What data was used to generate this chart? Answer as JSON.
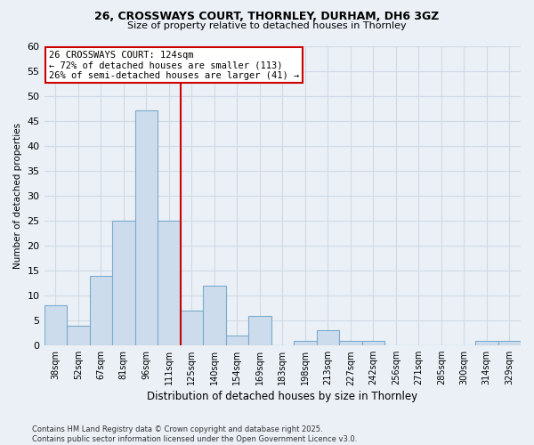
{
  "title_line1": "26, CROSSWAYS COURT, THORNLEY, DURHAM, DH6 3GZ",
  "title_line2": "Size of property relative to detached houses in Thornley",
  "xlabel": "Distribution of detached houses by size in Thornley",
  "ylabel": "Number of detached properties",
  "bar_labels": [
    "38sqm",
    "52sqm",
    "67sqm",
    "81sqm",
    "96sqm",
    "111sqm",
    "125sqm",
    "140sqm",
    "154sqm",
    "169sqm",
    "183sqm",
    "198sqm",
    "213sqm",
    "227sqm",
    "242sqm",
    "256sqm",
    "271sqm",
    "285sqm",
    "300sqm",
    "314sqm",
    "329sqm"
  ],
  "bar_values": [
    8,
    4,
    14,
    25,
    47,
    25,
    7,
    12,
    2,
    6,
    0,
    1,
    3,
    1,
    1,
    0,
    0,
    0,
    0,
    1,
    1
  ],
  "bar_color": "#cddcec",
  "bar_edge_color": "#7aabcc",
  "vline_x_bar_idx": 6,
  "vline_color": "#cc0000",
  "annotation_title": "26 CROSSWAYS COURT: 124sqm",
  "annotation_line2": "← 72% of detached houses are smaller (113)",
  "annotation_line3": "26% of semi-detached houses are larger (41) →",
  "annotation_box_color": "#ffffff",
  "annotation_box_edge_color": "#cc0000",
  "ylim": [
    0,
    60
  ],
  "yticks": [
    0,
    5,
    10,
    15,
    20,
    25,
    30,
    35,
    40,
    45,
    50,
    55,
    60
  ],
  "background_color": "#eaf0f6",
  "grid_color": "#d0dae4",
  "footnote": "Contains HM Land Registry data © Crown copyright and database right 2025.\nContains public sector information licensed under the Open Government Licence v3.0."
}
